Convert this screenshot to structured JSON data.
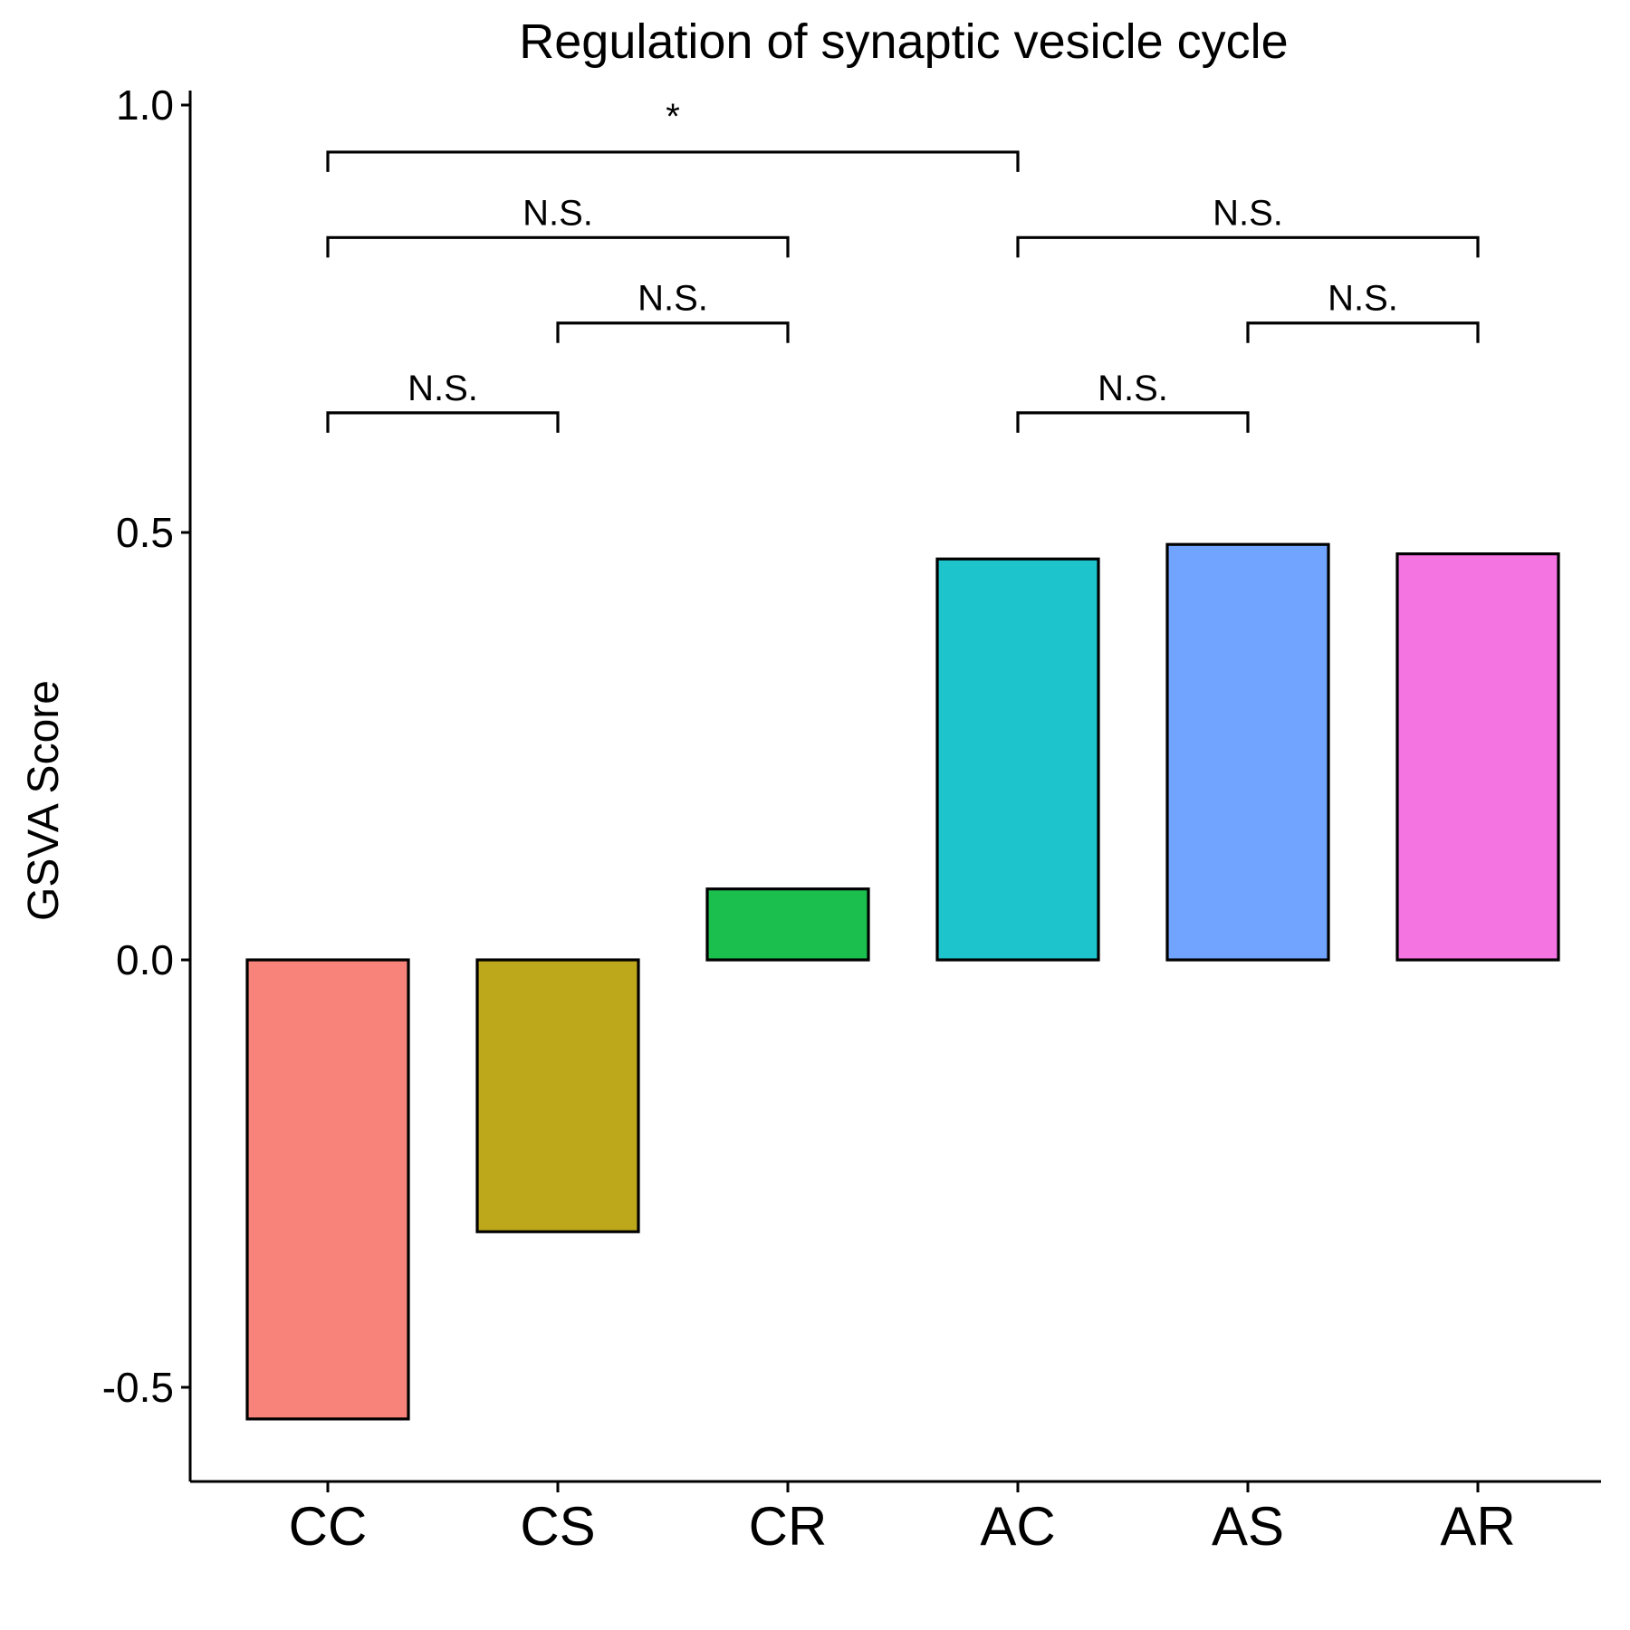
{
  "chart_data": {
    "type": "bar",
    "title": "Regulation of synaptic vesicle cycle",
    "xlabel": "",
    "ylabel": "GSVA Score",
    "categories": [
      "CC",
      "CS",
      "CR",
      "AC",
      "AS",
      "AR"
    ],
    "values": [
      -0.537,
      -0.318,
      0.083,
      0.469,
      0.486,
      0.475
    ],
    "colors": [
      "#F8837A",
      "#BDA71A",
      "#1BBF4E",
      "#1DC4CB",
      "#71A4FE",
      "#F474E1"
    ],
    "ylim": [
      -0.61,
      1.03
    ],
    "yticks": [
      -0.5,
      0.0,
      0.5,
      1.0
    ],
    "ytick_labels": [
      "-0.5",
      "0.0",
      "0.5",
      "1.0"
    ],
    "grid": false,
    "legend": "none",
    "annotations": [
      {
        "from": "CC",
        "to": "CS",
        "label": "N.S.",
        "y": 0.64
      },
      {
        "from": "CS",
        "to": "CR",
        "label": "N.S.",
        "y": 0.745
      },
      {
        "from": "CC",
        "to": "CR",
        "label": "N.S.",
        "y": 0.845
      },
      {
        "from": "CC",
        "to": "AC",
        "label": "*",
        "y": 0.945
      },
      {
        "from": "AC",
        "to": "AS",
        "label": "N.S.",
        "y": 0.64
      },
      {
        "from": "AS",
        "to": "AR",
        "label": "N.S.",
        "y": 0.745
      },
      {
        "from": "AC",
        "to": "AR",
        "label": "N.S.",
        "y": 0.845
      }
    ]
  }
}
